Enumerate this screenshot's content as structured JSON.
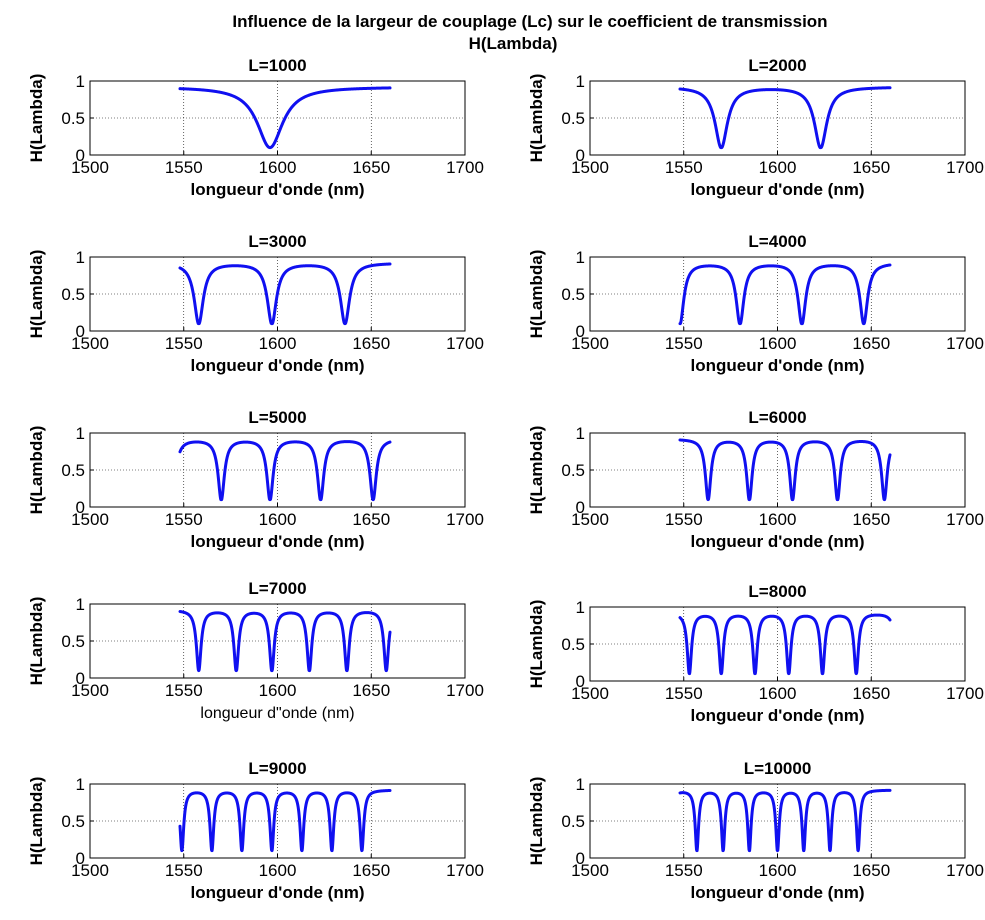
{
  "figure": {
    "title_line1": "Influence de la largeur de couplage (Lc) sur le coefficient de transmission",
    "title_line2": "H(Lambda)"
  },
  "style": {
    "series_color": "#1010f0",
    "axis_color": "#000000",
    "background": "#ffffff"
  },
  "chart_data": [
    {
      "type": "line",
      "title": "L=1000",
      "xlabel": "longueur d'onde (nm)",
      "ylabel": "H(Lambda)",
      "xlim": [
        1500,
        1700
      ],
      "ylim": [
        0,
        1
      ],
      "xticks": [
        "1500",
        "1550",
        "1600",
        "1650",
        "1700"
      ],
      "yticks": [
        "0",
        "0.5",
        "1"
      ],
      "grid": true,
      "series": [
        {
          "x_range": [
            1548,
            1660
          ],
          "hmax": 0.92,
          "hmin": 0.1,
          "dips": [
            1596
          ]
        }
      ]
    },
    {
      "type": "line",
      "title": "L=2000",
      "xlabel": "longueur d'onde (nm)",
      "ylabel": "H(Lambda)",
      "xlim": [
        1500,
        1700
      ],
      "ylim": [
        0,
        1
      ],
      "xticks": [
        "1500",
        "1550",
        "1600",
        "1650",
        "1700"
      ],
      "yticks": [
        "0",
        "0.5",
        "1"
      ],
      "grid": true,
      "series": [
        {
          "x_range": [
            1548,
            1660
          ],
          "hmax": 0.92,
          "hmin": 0.1,
          "dips": [
            1570,
            1623
          ]
        }
      ]
    },
    {
      "type": "line",
      "title": "L=3000",
      "xlabel": "longueur d'onde (nm)",
      "ylabel": "H(Lambda)",
      "xlim": [
        1500,
        1700
      ],
      "ylim": [
        0,
        1
      ],
      "xticks": [
        "1500",
        "1550",
        "1600",
        "1650",
        "1700"
      ],
      "yticks": [
        "0",
        "0.5",
        "1"
      ],
      "grid": true,
      "series": [
        {
          "x_range": [
            1548,
            1660
          ],
          "hmax": 0.92,
          "hmin": 0.1,
          "dips": [
            1558,
            1597,
            1636
          ]
        }
      ]
    },
    {
      "type": "line",
      "title": "L=4000",
      "xlabel": "longueur d'onde (nm)",
      "ylabel": "H(Lambda)",
      "xlim": [
        1500,
        1700
      ],
      "ylim": [
        0,
        1
      ],
      "xticks": [
        "1500",
        "1550",
        "1600",
        "1650",
        "1700"
      ],
      "yticks": [
        "0",
        "0.5",
        "1"
      ],
      "grid": true,
      "series": [
        {
          "x_range": [
            1548,
            1660
          ],
          "hmax": 0.92,
          "hmin": 0.1,
          "dips": [
            1548,
            1580,
            1613,
            1646
          ]
        }
      ]
    },
    {
      "type": "line",
      "title": "L=5000",
      "xlabel": "longueur d'onde (nm)",
      "ylabel": "H(Lambda)",
      "xlim": [
        1500,
        1700
      ],
      "ylim": [
        0,
        1
      ],
      "xticks": [
        "1500",
        "1550",
        "1600",
        "1650",
        "1700"
      ],
      "yticks": [
        "0",
        "0.5",
        "1"
      ],
      "grid": true,
      "series": [
        {
          "x_range": [
            1548,
            1660
          ],
          "hmax": 0.92,
          "hmin": 0.1,
          "dips": [
            1544,
            1570,
            1596,
            1623,
            1651
          ]
        }
      ]
    },
    {
      "type": "line",
      "title": "L=6000",
      "xlabel": "longueur d'onde (nm)",
      "ylabel": "H(Lambda)",
      "xlim": [
        1500,
        1700
      ],
      "ylim": [
        0,
        1
      ],
      "xticks": [
        "1500",
        "1550",
        "1600",
        "1650",
        "1700"
      ],
      "yticks": [
        "0",
        "0.5",
        "1"
      ],
      "grid": true,
      "series": [
        {
          "x_range": [
            1548,
            1660
          ],
          "hmax": 0.92,
          "hmin": 0.1,
          "dips": [
            1563,
            1585,
            1608,
            1632,
            1657
          ]
        }
      ]
    },
    {
      "type": "line",
      "title": "L=7000",
      "xlabel": "longueur d\"onde (nm)",
      "ylabel": "H(Lambda)",
      "xlim": [
        1500,
        1700
      ],
      "ylim": [
        0,
        1
      ],
      "xticks": [
        "1500",
        "1550",
        "1600",
        "1650",
        "1700"
      ],
      "yticks": [
        "0",
        "0.5",
        "1"
      ],
      "grid": true,
      "series": [
        {
          "x_range": [
            1548,
            1660
          ],
          "hmax": 0.92,
          "hmin": 0.1,
          "dips": [
            1558,
            1578,
            1597,
            1617,
            1637,
            1658
          ]
        }
      ]
    },
    {
      "type": "line",
      "title": "L=8000",
      "xlabel": "longueur d'onde (nm)",
      "ylabel": "H(Lambda)",
      "xlim": [
        1500,
        1700
      ],
      "ylim": [
        0,
        1
      ],
      "xticks": [
        "1500",
        "1550",
        "1600",
        "1650",
        "1700"
      ],
      "yticks": [
        "0",
        "0.5",
        "1"
      ],
      "grid": true,
      "series": [
        {
          "x_range": [
            1548,
            1660
          ],
          "hmax": 0.92,
          "hmin": 0.1,
          "dips": [
            1553,
            1570,
            1588,
            1606,
            1624,
            1642,
            1664
          ]
        }
      ]
    },
    {
      "type": "line",
      "title": "L=9000",
      "xlabel": "longueur d'onde (nm)",
      "ylabel": "H(Lambda)",
      "xlim": [
        1500,
        1700
      ],
      "ylim": [
        0,
        1
      ],
      "xticks": [
        "1500",
        "1550",
        "1600",
        "1650",
        "1700"
      ],
      "yticks": [
        "0",
        "0.5",
        "1"
      ],
      "grid": true,
      "series": [
        {
          "x_range": [
            1548,
            1660
          ],
          "hmax": 0.92,
          "hmin": 0.1,
          "dips": [
            1549,
            1565,
            1581,
            1597,
            1613,
            1629,
            1645
          ]
        }
      ]
    },
    {
      "type": "line",
      "title": "L=10000",
      "xlabel": "longueur d'onde (nm)",
      "ylabel": "H(Lambda)",
      "xlim": [
        1500,
        1700
      ],
      "ylim": [
        0,
        1
      ],
      "xticks": [
        "1500",
        "1550",
        "1600",
        "1650",
        "1700"
      ],
      "yticks": [
        "0",
        "0.5",
        "1"
      ],
      "grid": true,
      "series": [
        {
          "x_range": [
            1548,
            1660
          ],
          "hmax": 0.92,
          "hmin": 0.1,
          "dips": [
            1542,
            1557,
            1571,
            1585,
            1600,
            1614,
            1628,
            1643
          ]
        }
      ]
    }
  ]
}
